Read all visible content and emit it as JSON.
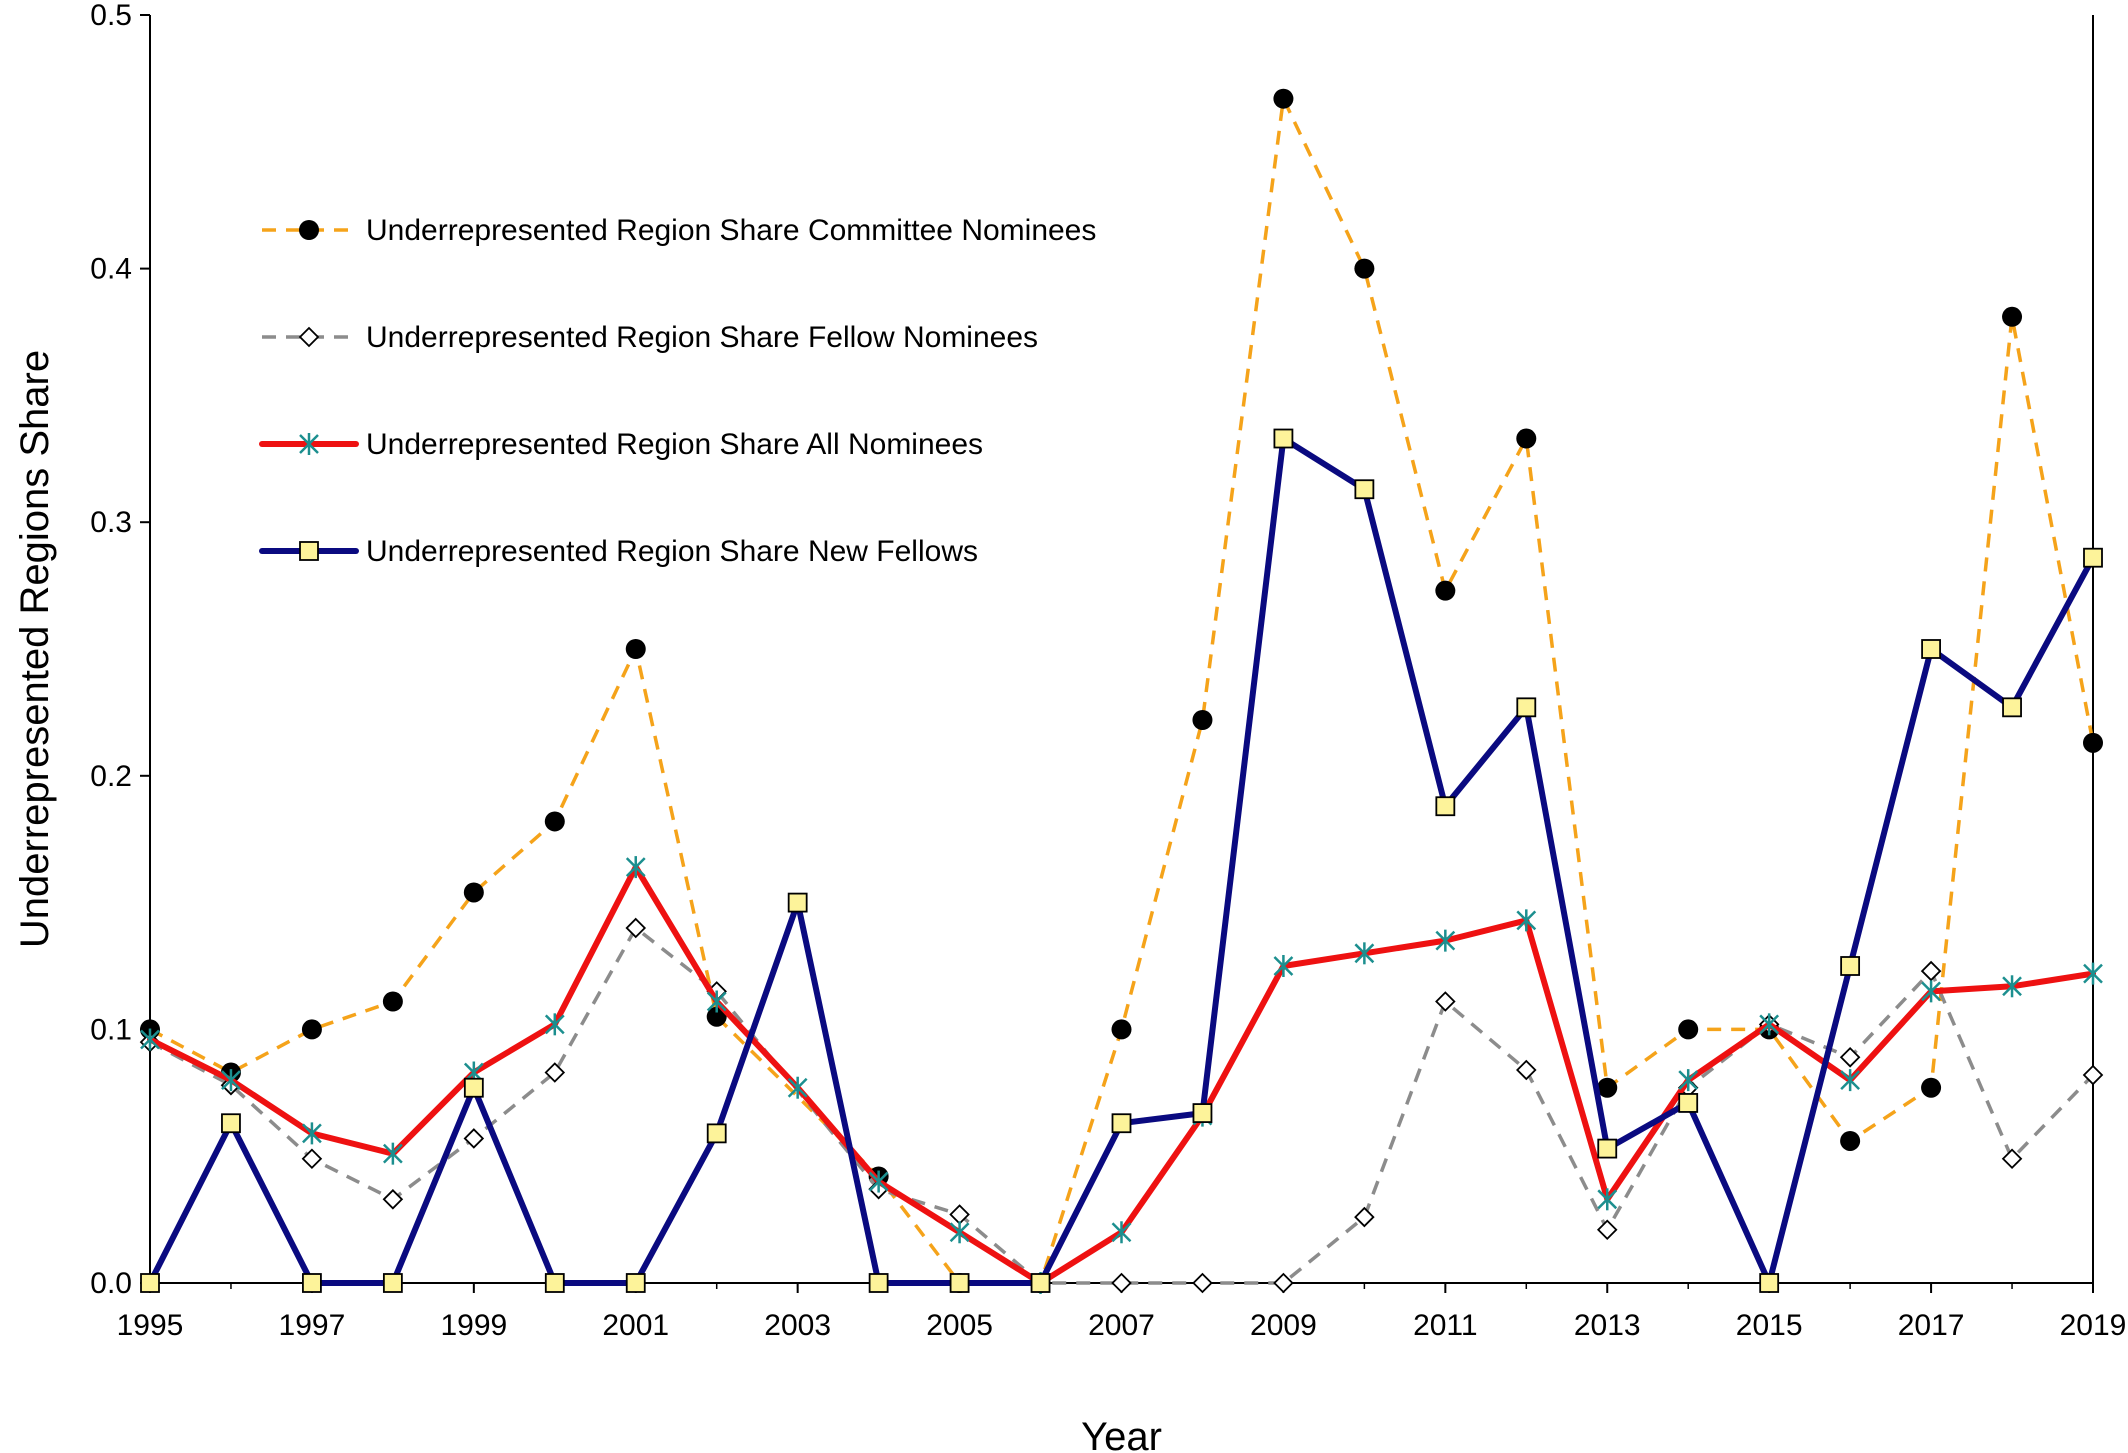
{
  "chart_data": {
    "type": "line",
    "xlabel": "Year",
    "ylabel": "Underrepresented Regions Share",
    "xlim": [
      1995,
      2019
    ],
    "ylim": [
      0,
      0.5
    ],
    "x_ticks": [
      "1995",
      "1997",
      "1999",
      "2001",
      "2003",
      "2005",
      "2007",
      "2009",
      "2011",
      "2013",
      "2015",
      "2017",
      "2019"
    ],
    "y_ticks": [
      "0.0",
      "0.1",
      "0.2",
      "0.3",
      "0.4",
      "0.5"
    ],
    "grid": false,
    "legend_position": "upper-left",
    "x": [
      1995,
      1996,
      1997,
      1998,
      1999,
      2000,
      2001,
      2002,
      2003,
      2004,
      2005,
      2006,
      2007,
      2008,
      2009,
      2010,
      2011,
      2012,
      2013,
      2014,
      2015,
      2016,
      2017,
      2018,
      2019
    ],
    "series": [
      {
        "name": "Underrepresented Region Share Committee Nominees",
        "color": "#f5a31a",
        "line": "dashed",
        "marker": "black-circle",
        "values": [
          0.1,
          0.083,
          0.1,
          0.111,
          0.154,
          0.182,
          0.25,
          0.105,
          null,
          0.042,
          0.0,
          0.0,
          0.1,
          0.222,
          0.467,
          0.4,
          0.273,
          0.333,
          0.077,
          0.1,
          0.1,
          0.056,
          0.077,
          0.381,
          0.213
        ]
      },
      {
        "name": "Underrepresented Region Share Fellow Nominees",
        "color": "#8c8c8c",
        "line": "dashed",
        "marker": "open-diamond",
        "values": [
          0.095,
          0.078,
          0.049,
          0.033,
          0.057,
          0.083,
          0.14,
          0.115,
          null,
          0.037,
          0.027,
          0.0,
          0.0,
          0.0,
          0.0,
          0.026,
          0.111,
          0.084,
          0.021,
          0.077,
          0.102,
          0.089,
          0.123,
          0.049,
          0.082
        ]
      },
      {
        "name": "Underrepresented Region Share All Nominees",
        "color": "#ee1111",
        "line": "solid",
        "marker": "teal-asterisk",
        "values": [
          0.096,
          0.08,
          0.059,
          0.051,
          0.083,
          0.102,
          0.164,
          0.111,
          0.077,
          0.04,
          0.02,
          0.0,
          0.02,
          0.066,
          0.125,
          0.13,
          0.135,
          0.143,
          0.033,
          0.08,
          0.102,
          0.08,
          0.115,
          0.117,
          0.122
        ]
      },
      {
        "name": "Underrepresented Region Share New Fellows",
        "color": "#0a0a80",
        "line": "solid",
        "marker": "yellow-square",
        "values": [
          0.0,
          0.063,
          0.0,
          0.0,
          0.077,
          0.0,
          0.0,
          0.059,
          0.15,
          0.0,
          0.0,
          0.0,
          0.063,
          0.067,
          0.333,
          0.313,
          0.188,
          0.227,
          0.053,
          0.071,
          0.0,
          0.125,
          0.25,
          0.227,
          0.286
        ]
      }
    ]
  }
}
